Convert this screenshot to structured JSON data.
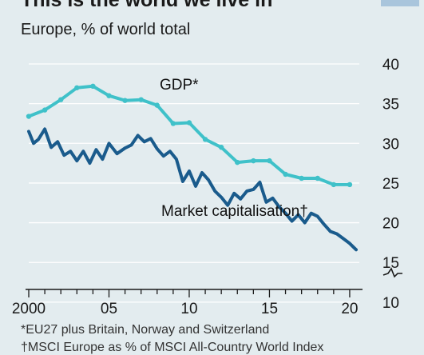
{
  "header": {
    "title": "This is the world we live in",
    "subtitle": "Europe, % of world total"
  },
  "footnotes": [
    "*EU27 plus Britain, Norway and Switzerland",
    "†MSCI Europe as % of MSCI All-Country World Index"
  ],
  "colors": {
    "gdp": "#3fc1c9",
    "market": "#1a5b8c",
    "background": "#e3ecef",
    "gridline": "#ffffff",
    "axis": "#1a1a1a"
  },
  "chart_data": {
    "type": "line",
    "title": "This is the world we live in",
    "subtitle": "Europe, % of world total",
    "xlim": [
      2000,
      2020.6
    ],
    "ylim": [
      12,
      40
    ],
    "y_axis_break": true,
    "y_axis_side": "right",
    "grid": true,
    "x_tick_values": [
      2000,
      2005,
      2010,
      2015,
      2020
    ],
    "x_tick_labels": [
      "2000",
      "05",
      "10",
      "15",
      "20"
    ],
    "y_tick_values": [
      40,
      35,
      30,
      25,
      20,
      15,
      10
    ],
    "y_tick_labels": [
      "40",
      "35",
      "30",
      "25",
      "20",
      "15",
      "10"
    ],
    "series": [
      {
        "name": "GDP*",
        "x": [
          2000,
          2001,
          2002,
          2003,
          2004,
          2005,
          2006,
          2007,
          2008,
          2009,
          2010,
          2011,
          2012,
          2013,
          2014,
          2015,
          2016,
          2017,
          2018,
          2019,
          2020
        ],
        "values": [
          33.4,
          34.2,
          35.5,
          37.0,
          37.2,
          36.0,
          35.4,
          35.5,
          34.8,
          32.5,
          32.6,
          30.5,
          29.5,
          27.6,
          27.8,
          27.8,
          26.1,
          25.6,
          25.6,
          24.8,
          24.8
        ]
      },
      {
        "name": "Market capitalisation†",
        "x": [
          2000,
          2000.3,
          2000.6,
          2001,
          2001.4,
          2001.8,
          2002.2,
          2002.6,
          2003,
          2003.4,
          2003.8,
          2004.2,
          2004.6,
          2005,
          2005.5,
          2006,
          2006.4,
          2006.8,
          2007.2,
          2007.6,
          2008,
          2008.4,
          2008.8,
          2009.2,
          2009.6,
          2010,
          2010.4,
          2010.8,
          2011.2,
          2011.6,
          2012,
          2012.4,
          2012.8,
          2013.2,
          2013.6,
          2014,
          2014.4,
          2014.8,
          2015.2,
          2015.6,
          2016,
          2016.4,
          2016.8,
          2017.2,
          2017.6,
          2018,
          2018.4,
          2018.8,
          2019.2,
          2019.6,
          2020,
          2020.4
        ],
        "values": [
          31.5,
          30.0,
          30.5,
          31.8,
          29.5,
          30.2,
          28.5,
          29.0,
          27.8,
          29.0,
          27.5,
          29.2,
          28.0,
          30.0,
          28.7,
          29.4,
          29.8,
          31.0,
          30.2,
          30.6,
          29.3,
          28.4,
          29.0,
          28.0,
          25.2,
          26.5,
          24.6,
          26.3,
          25.4,
          24.0,
          23.2,
          22.2,
          23.7,
          23.0,
          24.0,
          24.2,
          25.1,
          22.6,
          23.1,
          22.0,
          21.2,
          20.2,
          21.0,
          20.0,
          21.2,
          20.8,
          19.8,
          18.9,
          18.6,
          18.0,
          17.4,
          16.6
        ]
      }
    ]
  }
}
